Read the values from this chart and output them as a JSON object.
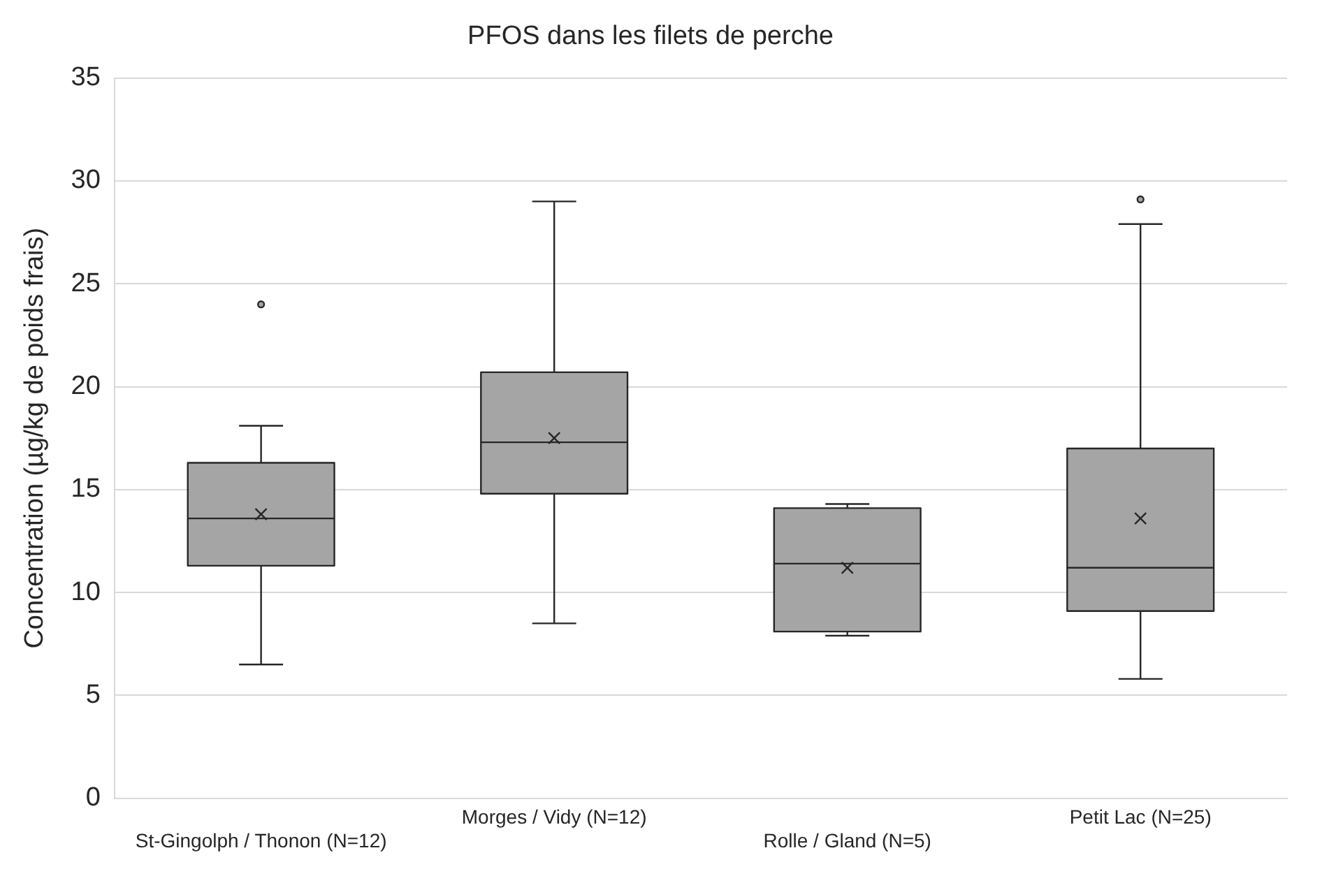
{
  "chart_data": {
    "type": "box",
    "title": "PFOS dans les filets de perche",
    "ylabel": "Concentration (µg/kg de poids frais)",
    "categories": [
      "St-Gingolph / Thonon (N=12)",
      "Morges / Vidy (N=12)",
      "Rolle / Gland (N=5)",
      "Petit Lac (N=25)"
    ],
    "color": "#a5a5a5",
    "boxes": [
      {
        "low": 6.5,
        "q1": 11.3,
        "median": 13.6,
        "q3": 16.3,
        "high": 18.1,
        "mean": 13.8,
        "outliers": [
          24.0
        ]
      },
      {
        "low": 8.5,
        "q1": 14.8,
        "median": 17.3,
        "q3": 20.7,
        "high": 29.0,
        "mean": 17.5
      },
      {
        "low": 7.9,
        "q1": 8.1,
        "median": 11.4,
        "q3": 14.1,
        "high": 14.3,
        "mean": 11.2
      },
      {
        "low": 5.8,
        "q1": 9.1,
        "median": 11.2,
        "q3": 17.0,
        "high": 27.9,
        "mean": 13.6,
        "outliers": [
          29.1
        ]
      }
    ],
    "ylim": [
      0,
      35
    ],
    "yticks": [
      0,
      5,
      10,
      15,
      20,
      25,
      30,
      35
    ],
    "grid": "y",
    "legend": false
  }
}
